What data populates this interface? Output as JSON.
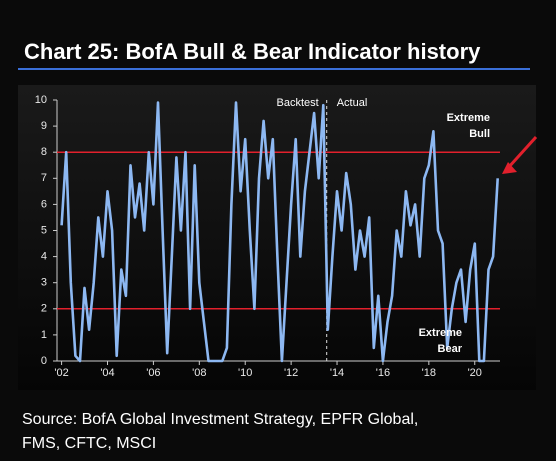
{
  "chart_data": {
    "type": "line",
    "title": "Chart 25: BofA Bull & Bear Indicator history",
    "color": "#8db8f2",
    "x": [
      2002.0,
      2002.2,
      2002.4,
      2002.6,
      2002.8,
      2003.0,
      2003.2,
      2003.4,
      2003.6,
      2003.8,
      2004.0,
      2004.2,
      2004.4,
      2004.6,
      2004.8,
      2005.0,
      2005.2,
      2005.4,
      2005.6,
      2005.8,
      2006.0,
      2006.2,
      2006.4,
      2006.6,
      2006.8,
      2007.0,
      2007.2,
      2007.4,
      2007.6,
      2007.8,
      2008.0,
      2008.2,
      2008.4,
      2008.6,
      2008.8,
      2009.0,
      2009.2,
      2009.4,
      2009.6,
      2009.8,
      2010.0,
      2010.2,
      2010.4,
      2010.6,
      2010.8,
      2011.0,
      2011.2,
      2011.4,
      2011.6,
      2011.8,
      2012.0,
      2012.2,
      2012.4,
      2012.6,
      2012.8,
      2013.0,
      2013.2,
      2013.4,
      2013.6,
      2013.8,
      2014.0,
      2014.2,
      2014.4,
      2014.6,
      2014.8,
      2015.0,
      2015.2,
      2015.4,
      2015.6,
      2015.8,
      2016.0,
      2016.2,
      2016.4,
      2016.6,
      2016.8,
      2017.0,
      2017.2,
      2017.4,
      2017.6,
      2017.8,
      2018.0,
      2018.2,
      2018.4,
      2018.6,
      2018.8,
      2019.0,
      2019.2,
      2019.4,
      2019.6,
      2019.8,
      2020.0,
      2020.2,
      2020.4,
      2020.6,
      2020.8,
      2021.0
    ],
    "values": [
      5.2,
      8.0,
      3,
      0.2,
      0,
      2.8,
      1.2,
      3,
      5.5,
      4,
      6.5,
      5,
      0.2,
      3.5,
      2.5,
      7.5,
      5.5,
      6.8,
      5,
      8,
      6,
      9.9,
      5,
      0.3,
      4,
      7.8,
      5,
      8,
      2,
      7.5,
      3,
      1.5,
      0,
      0,
      0,
      0,
      0.5,
      6,
      9.9,
      6.5,
      8.5,
      5,
      2,
      7,
      9.2,
      7,
      8.5,
      4,
      0,
      3,
      6,
      8.5,
      4,
      6.5,
      8,
      9.5,
      7,
      9.8,
      1.2,
      4,
      6.5,
      5,
      7.2,
      6,
      3.5,
      5,
      4,
      5.5,
      0.5,
      2.5,
      0,
      1.5,
      2.5,
      5,
      4,
      6.5,
      5.2,
      6,
      4,
      7,
      7.5,
      8.8,
      5,
      4.5,
      0.5,
      2,
      3,
      3.5,
      1.5,
      3.5,
      4.5,
      0,
      0,
      3.5,
      4,
      7
    ],
    "xlim": [
      2001.8,
      2021.1
    ],
    "ylim": [
      0,
      10
    ],
    "yticks": [
      0,
      1,
      2,
      3,
      4,
      5,
      6,
      7,
      8,
      9,
      10
    ],
    "xticks": [
      {
        "value": 2002,
        "label": "'02"
      },
      {
        "value": 2004,
        "label": "'04"
      },
      {
        "value": 2006,
        "label": "'06"
      },
      {
        "value": 2008,
        "label": "'08"
      },
      {
        "value": 2010,
        "label": "'10"
      },
      {
        "value": 2012,
        "label": "'12"
      },
      {
        "value": 2014,
        "label": "'14"
      },
      {
        "value": 2016,
        "label": "'16"
      },
      {
        "value": 2018,
        "label": "'18"
      },
      {
        "value": 2020,
        "label": "'20"
      }
    ],
    "hlines": [
      {
        "value": 8,
        "color": "#e2202c"
      },
      {
        "value": 2,
        "color": "#e2202c"
      }
    ],
    "vline": 2013.55,
    "annotations": {
      "backtest": "Backtest",
      "actual": "Actual",
      "extreme_bull": [
        "Extreme",
        "Bull"
      ],
      "extreme_bear": [
        "Extreme",
        "Bear"
      ]
    },
    "source": [
      "Source: BofA Global Investment Strategy, EPFR Global,",
      "FMS, CFTC, MSCI"
    ]
  }
}
